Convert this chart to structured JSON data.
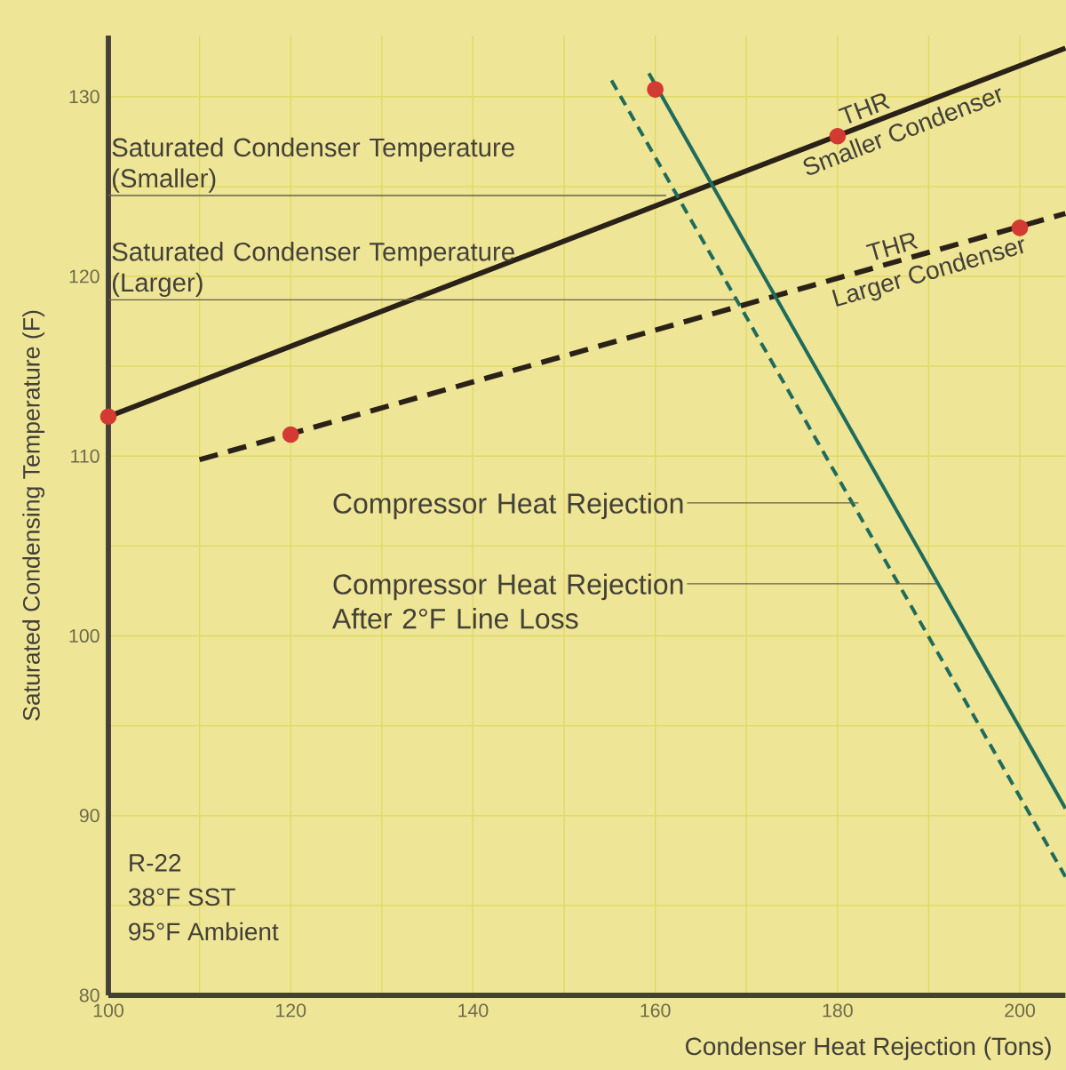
{
  "chart_data": {
    "type": "line",
    "xlabel": "Condenser Heat Rejection (Tons)",
    "ylabel": "Saturated Condensing Temperature (F)",
    "xlim": [
      100,
      205
    ],
    "ylim": [
      80,
      133.4
    ],
    "xticks": [
      100,
      {
        "value": 110,
        "label": null
      },
      120,
      {
        "value": 130,
        "label": null
      },
      140,
      {
        "value": 150,
        "label": null
      },
      160,
      {
        "value": 170,
        "label": null
      },
      180,
      {
        "value": 190,
        "label": null
      },
      200
    ],
    "yticks": [
      80,
      {
        "value": 85,
        "label": null
      },
      90,
      {
        "value": 95,
        "label": null
      },
      100,
      {
        "value": 105,
        "label": null
      },
      110,
      {
        "value": 115,
        "label": null
      },
      120,
      {
        "value": 125,
        "label": null
      },
      130
    ],
    "grid": true,
    "series": [
      {
        "type": "line",
        "color": "#2a2118",
        "line_style": "solid",
        "x": [
          100,
          205
        ],
        "values": [
          112.2,
          132.7
        ]
      },
      {
        "type": "line",
        "color": "#2a2118",
        "line_style": "dashed",
        "x": [
          110,
          205
        ],
        "values": [
          109.8,
          123.5
        ]
      },
      {
        "type": "line",
        "color": "#1f6b5c",
        "line_style": "solid",
        "x": [
          159.3,
          205
        ],
        "values": [
          131.3,
          90.4
        ]
      },
      {
        "type": "line",
        "color": "#1f6b5c",
        "line_style": "dashed",
        "x": [
          155.2,
          205
        ],
        "values": [
          130.9,
          86.6
        ]
      },
      {
        "type": "scatter",
        "color": "#d23a32",
        "marker": "circle",
        "x": [
          100,
          120,
          160,
          180,
          200
        ],
        "values": [
          112.2,
          111.2,
          130.4,
          127.8,
          122.7
        ]
      }
    ],
    "annotations": [
      {
        "text": "Saturated Condenser Temperature (Smaller)",
        "x": 161.2,
        "y": 124.5
      },
      {
        "text": "Saturated Condenser Temperature (Larger)",
        "x": 169,
        "y": 118.7
      },
      {
        "text": "THR",
        "x": 183.6,
        "y": 128.5
      },
      {
        "text": "Smaller Condenser",
        "x": 186.5,
        "y": 129
      },
      {
        "text": "THR",
        "x": 186.5,
        "y": 120.8
      },
      {
        "text": "Larger Condenser",
        "x": 189.5,
        "y": 121.2
      },
      {
        "text": "Compressor Heat Rejection",
        "x": 182.3,
        "y": 107.4
      },
      {
        "text": "Compressor Heat Rejection After 2°F Line Loss",
        "x": 191,
        "y": 102.9
      },
      "R-22",
      "38°F SST",
      "95°F Ambient"
    ]
  }
}
